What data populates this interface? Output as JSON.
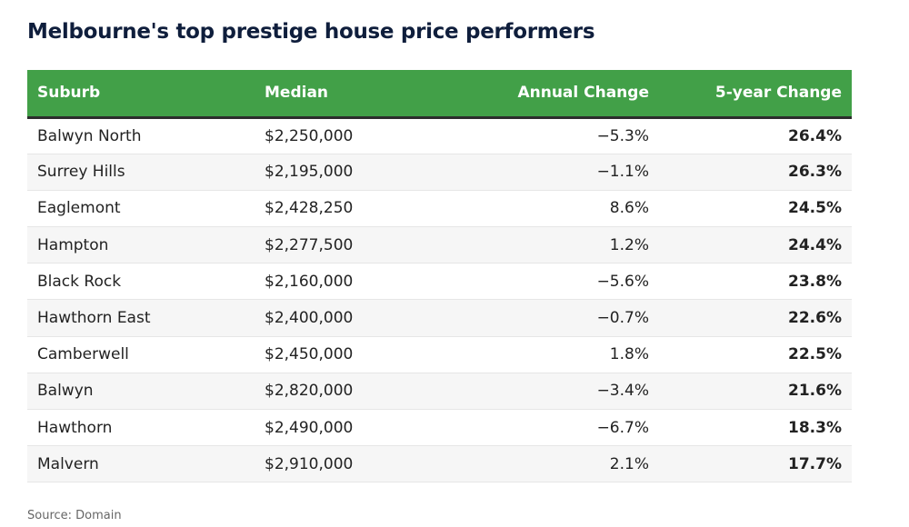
{
  "chart_data": {
    "type": "table",
    "title": "Melbourne's top prestige house price performers",
    "columns": [
      "Suburb",
      "Median",
      "Annual Change",
      "5-year Change"
    ],
    "rows": [
      [
        "Balwyn North",
        "$2,250,000",
        "−5.3%",
        "26.4%"
      ],
      [
        "Surrey Hills",
        "$2,195,000",
        "−1.1%",
        "26.3%"
      ],
      [
        "Eaglemont",
        "$2,428,250",
        "8.6%",
        "24.5%"
      ],
      [
        "Hampton",
        "$2,277,500",
        "1.2%",
        "24.4%"
      ],
      [
        "Black Rock",
        "$2,160,000",
        "−5.6%",
        "23.8%"
      ],
      [
        "Hawthorn East",
        "$2,400,000",
        "−0.7%",
        "22.6%"
      ],
      [
        "Camberwell",
        "$2,450,000",
        "1.8%",
        "22.5%"
      ],
      [
        "Balwyn",
        "$2,820,000",
        "−3.4%",
        "21.6%"
      ],
      [
        "Hawthorn",
        "$2,490,000",
        "−6.7%",
        "18.3%"
      ],
      [
        "Malvern",
        "$2,910,000",
        "2.1%",
        "17.7%"
      ]
    ],
    "source": "Source: Domain"
  },
  "colors": {
    "header_background": "#42a048",
    "title_text": "#0f1e3c"
  }
}
